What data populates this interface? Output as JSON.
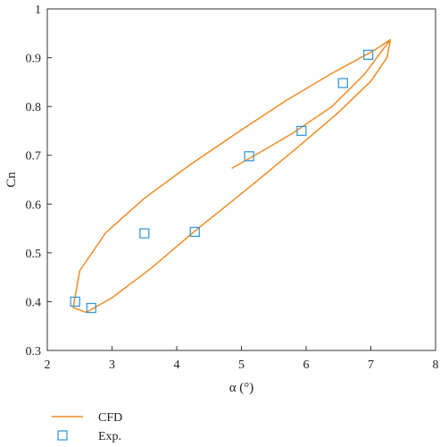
{
  "chart_data": {
    "type": "line",
    "xlabel": "α (°)",
    "ylabel": "Cn",
    "xlim": [
      2,
      8
    ],
    "ylim": [
      0.3,
      1.0
    ],
    "x_ticks": [
      "2",
      "3",
      "4",
      "5",
      "6",
      "7",
      "8"
    ],
    "y_ticks": [
      "0.3",
      "0.4",
      "0.5",
      "0.6",
      "0.7",
      "0.8",
      "0.9",
      "1"
    ],
    "grid": false,
    "legend_position": "below-left",
    "series": [
      {
        "name": "CFD",
        "style": "line",
        "color": "#f08a24",
        "x": [
          4.85,
          5.3,
          5.8,
          6.4,
          6.9,
          7.3,
          7.05,
          6.4,
          5.7,
          5.0,
          4.2,
          3.5,
          2.9,
          2.5,
          2.4,
          2.6,
          3.0,
          3.6,
          4.3,
          4.8,
          5.3,
          5.9,
          6.5,
          7.0,
          7.25,
          7.3
        ],
        "y": [
          0.673,
          0.707,
          0.746,
          0.8,
          0.866,
          0.937,
          0.915,
          0.868,
          0.813,
          0.752,
          0.68,
          0.612,
          0.541,
          0.463,
          0.388,
          0.378,
          0.408,
          0.468,
          0.547,
          0.6,
          0.654,
          0.72,
          0.788,
          0.852,
          0.9,
          0.935
        ]
      },
      {
        "name": "Exp.",
        "style": "marker-square-open",
        "color": "#3a9ad9",
        "x": [
          2.43,
          2.68,
          3.5,
          4.28,
          5.12,
          5.93,
          6.57,
          6.96
        ],
        "y": [
          0.4,
          0.387,
          0.54,
          0.543,
          0.698,
          0.75,
          0.848,
          0.906
        ]
      }
    ]
  }
}
